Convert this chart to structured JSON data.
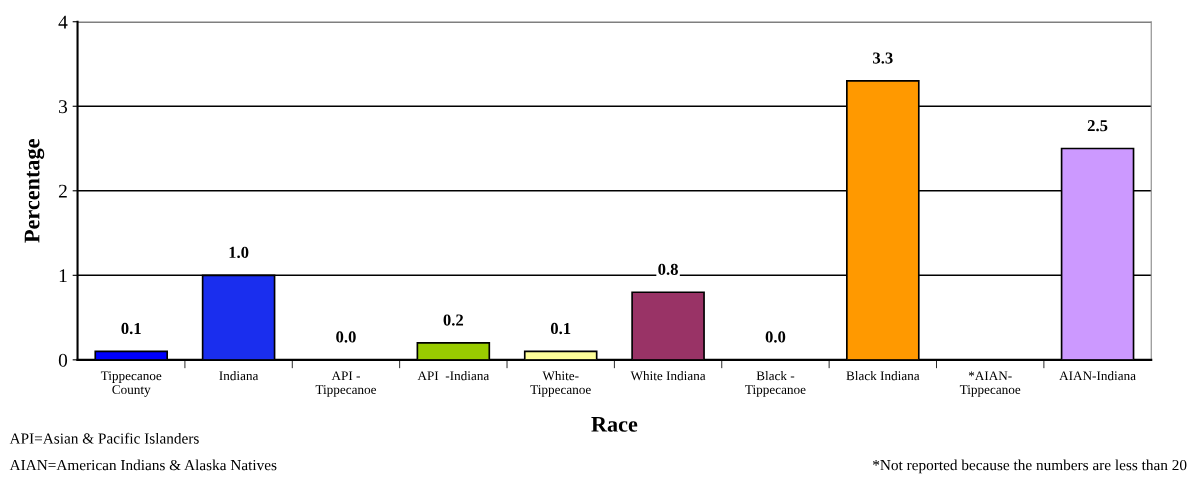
{
  "chart_data": {
    "type": "bar",
    "xlabel": "Race",
    "ylabel": "Percentage",
    "categories": [
      "Tippecanoe\nCounty",
      "Indiana",
      "API -\nTippecanoe",
      "API  -Indiana",
      "White-\nTippecanoe",
      "White Indiana",
      "Black -\nTippecanoe",
      "Black Indiana",
      "*AIAN-\nTippecanoe",
      "AIAN-Indiana"
    ],
    "values": [
      0.1,
      1.0,
      0.0,
      0.2,
      0.1,
      0.8,
      0.0,
      3.3,
      null,
      2.5
    ],
    "value_labels": [
      "0.1",
      "1.0",
      "0.0",
      "0.2",
      "0.1",
      "0.8",
      "0.0",
      "3.3",
      null,
      "2.5"
    ],
    "colors": [
      "#0000ff",
      "#1a2eee",
      "#99cc00",
      "#99cc00",
      "#ffff99",
      "#993366",
      "#000000",
      "#ff9900",
      "#cc99ff",
      "#cc99ff"
    ],
    "ylim": [
      0,
      4
    ],
    "yticks": [
      0,
      1,
      2,
      3,
      4
    ],
    "grid": "y",
    "legend": false,
    "annotations": [
      "API=Asian & Pacific Islanders",
      "AIAN=American Indians & Alaska Natives",
      "*Not reported because the numbers are less than 20"
    ]
  }
}
